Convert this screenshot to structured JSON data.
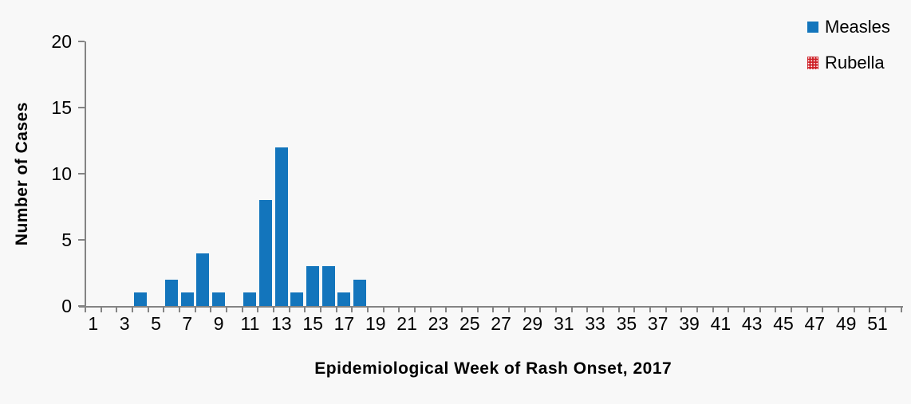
{
  "chart_data": {
    "type": "bar",
    "title": "",
    "xlabel": "Epidemiological Week of Rash Onset, 2017",
    "ylabel": "Number of Cases",
    "x_axis": {
      "unit": "epidemiological week",
      "week_range": [
        1,
        52
      ],
      "labeled_ticks": [
        1,
        3,
        5,
        7,
        9,
        11,
        13,
        15,
        17,
        19,
        21,
        23,
        25,
        27,
        29,
        31,
        33,
        35,
        37,
        39,
        41,
        43,
        45,
        47,
        49,
        51
      ],
      "minor_tick_every_week": true
    },
    "y_axis": {
      "ylim": [
        0,
        20
      ],
      "ticks": [
        0,
        5,
        10,
        15,
        20
      ]
    },
    "grid": false,
    "legend_position": "top-right",
    "series": [
      {
        "name": "Measles",
        "color": "#1375bc",
        "fill_style": "solid",
        "cases_by_week": {
          "4": 1,
          "6": 2,
          "7": 1,
          "8": 4,
          "9": 1,
          "11": 1,
          "12": 8,
          "13": 12,
          "14": 1,
          "15": 3,
          "16": 3,
          "17": 1,
          "18": 2
        }
      },
      {
        "name": "Rubella",
        "color": "#ce2128",
        "fill_style": "dotted-pattern",
        "cases_by_week": {}
      }
    ]
  },
  "colors": {
    "background": "#f8f8f8",
    "axis": "#848484",
    "text": "#000000"
  }
}
